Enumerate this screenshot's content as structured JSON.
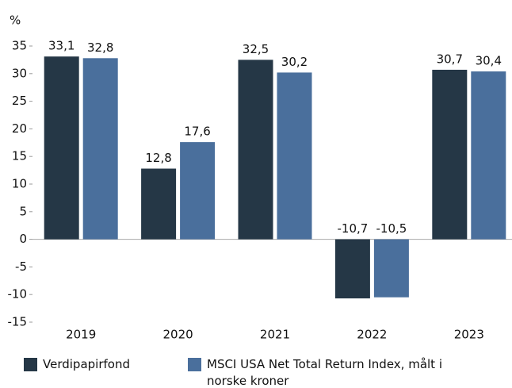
{
  "chart_data": {
    "type": "bar",
    "y_label": "%",
    "categories": [
      "2019",
      "2020",
      "2021",
      "2022",
      "2023"
    ],
    "series": [
      {
        "name": "Verdipapirfond",
        "color": "#253746",
        "values": [
          33.1,
          12.8,
          32.5,
          -10.7,
          30.7
        ],
        "value_labels": [
          "33,1",
          "12,8",
          "32,5",
          "-10,7",
          "30,7"
        ]
      },
      {
        "name": "MSCI USA Net Total Return Index, målt i norske kroner",
        "color": "#4a6f9c",
        "values": [
          32.8,
          17.6,
          30.2,
          -10.5,
          30.4
        ],
        "value_labels": [
          "32,8",
          "17,6",
          "30,2",
          "-10,5",
          "30,4"
        ]
      }
    ],
    "ylim": [
      -15,
      35
    ],
    "yticks": [
      35,
      30,
      25,
      20,
      15,
      10,
      5,
      0,
      -5,
      -10,
      -15
    ],
    "legend": "bottom"
  }
}
